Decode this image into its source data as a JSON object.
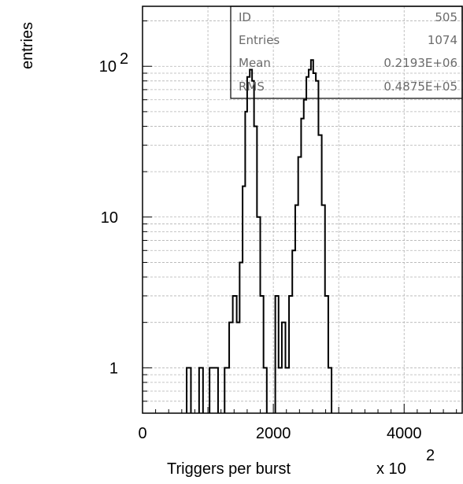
{
  "chart_data": {
    "type": "histogram",
    "title": "",
    "xlabel": "Triggers per burst",
    "ylabel": "entries",
    "x_multiplier": "x 10",
    "x_multiplier_exp": "2",
    "x_range": [
      0,
      4900
    ],
    "y_scale": "log",
    "y_range": [
      0.5,
      250
    ],
    "grid": true,
    "x_ticks": [
      {
        "value": 0,
        "label": "0"
      },
      {
        "value": 2000,
        "label": "2000"
      },
      {
        "value": 4000,
        "label": "4000"
      }
    ],
    "y_ticks": [
      {
        "value": 1,
        "label": "1"
      },
      {
        "value": 10,
        "label": "10"
      },
      {
        "value": 100,
        "label": "10",
        "exp": "2"
      }
    ],
    "bins": [
      {
        "x0": 675,
        "x1": 740,
        "y": 1
      },
      {
        "x0": 865,
        "x1": 925,
        "y": 1
      },
      {
        "x0": 1025,
        "x1": 1155,
        "y": 1
      },
      {
        "x0": 1255,
        "x1": 1325,
        "y": 1
      },
      {
        "x0": 1325,
        "x1": 1380,
        "y": 2
      },
      {
        "x0": 1380,
        "x1": 1440,
        "y": 3
      },
      {
        "x0": 1440,
        "x1": 1485,
        "y": 2
      },
      {
        "x0": 1485,
        "x1": 1530,
        "y": 5
      },
      {
        "x0": 1530,
        "x1": 1570,
        "y": 16
      },
      {
        "x0": 1570,
        "x1": 1600,
        "y": 50
      },
      {
        "x0": 1600,
        "x1": 1640,
        "y": 85
      },
      {
        "x0": 1640,
        "x1": 1675,
        "y": 95
      },
      {
        "x0": 1675,
        "x1": 1705,
        "y": 80
      },
      {
        "x0": 1705,
        "x1": 1750,
        "y": 40
      },
      {
        "x0": 1750,
        "x1": 1800,
        "y": 10
      },
      {
        "x0": 1800,
        "x1": 1850,
        "y": 3
      },
      {
        "x0": 1850,
        "x1": 1900,
        "y": 1
      },
      {
        "x0": 2030,
        "x1": 2080,
        "y": 3
      },
      {
        "x0": 2080,
        "x1": 2130,
        "y": 1
      },
      {
        "x0": 2130,
        "x1": 2185,
        "y": 2
      },
      {
        "x0": 2185,
        "x1": 2240,
        "y": 1
      },
      {
        "x0": 2240,
        "x1": 2290,
        "y": 3
      },
      {
        "x0": 2290,
        "x1": 2335,
        "y": 6
      },
      {
        "x0": 2335,
        "x1": 2380,
        "y": 12
      },
      {
        "x0": 2380,
        "x1": 2425,
        "y": 25
      },
      {
        "x0": 2425,
        "x1": 2465,
        "y": 45
      },
      {
        "x0": 2465,
        "x1": 2505,
        "y": 60
      },
      {
        "x0": 2505,
        "x1": 2540,
        "y": 85
      },
      {
        "x0": 2540,
        "x1": 2575,
        "y": 95
      },
      {
        "x0": 2575,
        "x1": 2610,
        "y": 110
      },
      {
        "x0": 2610,
        "x1": 2650,
        "y": 90
      },
      {
        "x0": 2650,
        "x1": 2690,
        "y": 80
      },
      {
        "x0": 2690,
        "x1": 2740,
        "y": 35
      },
      {
        "x0": 2740,
        "x1": 2790,
        "y": 12
      },
      {
        "x0": 2790,
        "x1": 2840,
        "y": 3
      },
      {
        "x0": 2840,
        "x1": 2890,
        "y": 1
      }
    ]
  },
  "stats": {
    "id_label": "ID",
    "id_value": "505",
    "entries_label": "Entries",
    "entries_value": "1074",
    "mean_label": "Mean",
    "mean_value": "0.2193E+06",
    "rms_label": "RMS",
    "rms_value": "0.4875E+05"
  }
}
